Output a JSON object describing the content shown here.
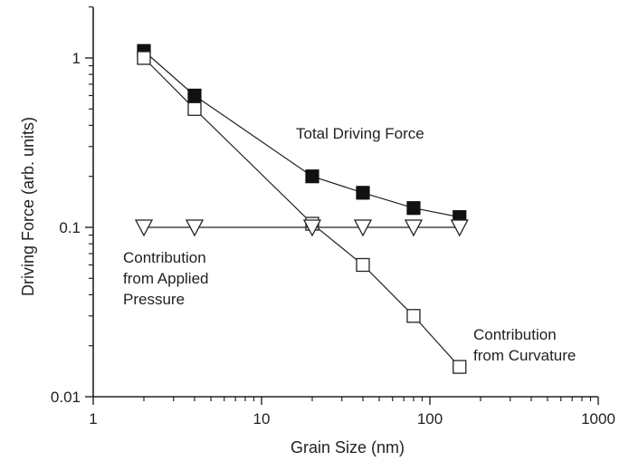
{
  "chart_data": {
    "type": "scatter",
    "xlabel": "Grain Size (nm)",
    "ylabel": "Driving Force (arb. units)",
    "xscale": "log",
    "yscale": "log",
    "xlim": [
      1,
      1000
    ],
    "ylim": [
      0.01,
      2.5
    ],
    "xticks": [
      1,
      10,
      100,
      1000
    ],
    "xtick_labels": [
      "1",
      "10",
      "100",
      "1000"
    ],
    "yticks": [
      0.01,
      0.1,
      1
    ],
    "ytick_labels": [
      "0.01",
      "0.1",
      "1"
    ],
    "grid": false,
    "legend": "none",
    "series": [
      {
        "name": "Total Driving Force",
        "marker": "filled-square",
        "connected": true,
        "x": [
          2,
          4,
          20,
          40,
          80,
          150
        ],
        "y": [
          1.1,
          0.6,
          0.2,
          0.16,
          0.13,
          0.115
        ]
      },
      {
        "name": "Contribution from Curvature",
        "marker": "open-square",
        "connected": true,
        "x": [
          2,
          4,
          20,
          40,
          80,
          150
        ],
        "y": [
          1.0,
          0.5,
          0.105,
          0.06,
          0.03,
          0.015
        ]
      },
      {
        "name": "Contribution from Applied Pressure",
        "marker": "open-down-triangle",
        "connected": true,
        "x": [
          2,
          4,
          20,
          40,
          80,
          150
        ],
        "y": [
          0.1,
          0.1,
          0.1,
          0.1,
          0.1,
          0.1
        ]
      }
    ],
    "annotations": [
      {
        "series": 0,
        "lines": [
          "Total Driving Force"
        ]
      },
      {
        "series": 1,
        "lines": [
          "Contribution",
          "from Curvature"
        ]
      },
      {
        "series": 2,
        "lines": [
          "Contribution",
          "from Applied",
          "Pressure"
        ]
      }
    ]
  }
}
